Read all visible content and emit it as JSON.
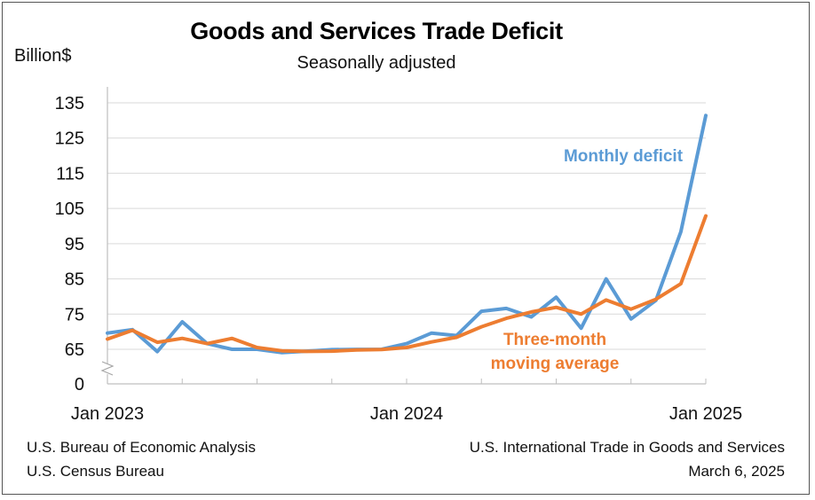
{
  "chart_data": {
    "type": "line",
    "title": "Goods and Services Trade Deficit",
    "subtitle": "Seasonally adjusted",
    "ylabel": "Billion$",
    "xlabel": "",
    "ylim": [
      0,
      135
    ],
    "y_ticks": [
      "135",
      "125",
      "115",
      "105",
      "95",
      "85",
      "75",
      "65",
      "0"
    ],
    "y_axis_break": true,
    "x_tick_labels": [
      "Jan 2023",
      "Jan 2024",
      "Jan 2025"
    ],
    "x": [
      "2023-01",
      "2023-02",
      "2023-03",
      "2023-04",
      "2023-05",
      "2023-06",
      "2023-07",
      "2023-08",
      "2023-09",
      "2023-10",
      "2023-11",
      "2023-12",
      "2024-01",
      "2024-02",
      "2024-03",
      "2024-04",
      "2024-05",
      "2024-06",
      "2024-07",
      "2024-08",
      "2024-09",
      "2024-10",
      "2024-11",
      "2024-12",
      "2025-01"
    ],
    "grid": true,
    "series": [
      {
        "name": "Monthly deficit",
        "color": "#5B9BD5",
        "values": [
          69.6,
          70.6,
          60.6,
          72.8,
          66.6,
          65.0,
          65.0,
          58.6,
          61.5,
          64.4,
          64.8,
          65.0,
          66.6,
          69.6,
          68.9,
          75.8,
          76.6,
          74.2,
          79.8,
          71.0,
          85.0,
          73.6,
          78.9,
          98.4,
          131.4
        ]
      },
      {
        "name": "Three-month moving average",
        "color": "#ED7D31",
        "values": [
          67.9,
          70.4,
          67.0,
          68.1,
          66.6,
          68.1,
          65.5,
          62.2,
          61.0,
          61.5,
          63.6,
          64.7,
          65.5,
          67.1,
          68.4,
          71.4,
          73.8,
          75.6,
          76.9,
          75.0,
          79.0,
          76.4,
          79.2,
          83.6,
          102.9
        ]
      }
    ],
    "annotations": [
      {
        "text": "Monthly deficit",
        "series": 0
      },
      {
        "lines": [
          "Three-month",
          "moving average"
        ],
        "series": 1
      }
    ]
  },
  "footer": {
    "source_left_1": "U.S. Bureau of Economic Analysis",
    "source_left_2": "U.S. Census Bureau",
    "publication": "U.S. International Trade in Goods and Services",
    "date": "March 6, 2025"
  }
}
